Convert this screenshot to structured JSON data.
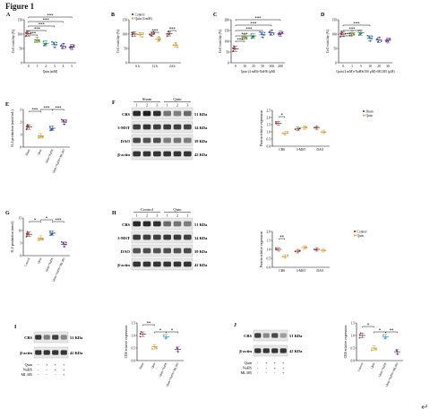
{
  "figure": {
    "title": "Figure 1",
    "return_symbol": "↵"
  },
  "colors": {
    "control": "#7c3a3a",
    "quin": "#c7a24a",
    "sham": "#7c3a3a",
    "c2": "#6e8c3a",
    "c3": "#3a8c6a",
    "c4": "#3a6e8c",
    "c5": "#4a4a8c",
    "c6": "#6a3a7c",
    "blue": "#3a5a8c",
    "cyan": "#5aa0b8"
  },
  "chart_data": [
    {
      "id": "A",
      "type": "scatter",
      "panel_label": "A",
      "ylabel": "Cell viability (%)",
      "xlabel": "Quin (mM)",
      "categories": [
        "0",
        "1",
        "2",
        "3",
        "4",
        "5"
      ],
      "ylim": [
        0,
        150
      ],
      "yticks": [
        "0",
        "50",
        "100",
        "150"
      ],
      "values": [
        102,
        80,
        68,
        63,
        58,
        55
      ],
      "sig": [
        "***",
        "***",
        "***",
        "***",
        "***"
      ]
    },
    {
      "id": "B",
      "type": "scatter",
      "panel_label": "B",
      "ylabel": "Cell viability (%)",
      "categories": [
        "6 h",
        "12 h",
        "24 h"
      ],
      "ylim": [
        0,
        150
      ],
      "yticks": [
        "0",
        "50",
        "100",
        "150"
      ],
      "legend": [
        "Control",
        "Quin (4 mM)"
      ],
      "series": [
        {
          "name": "Control",
          "values": [
            100,
            100,
            101
          ]
        },
        {
          "name": "Quin (4 mM)",
          "values": [
            98,
            82,
            62
          ]
        }
      ],
      "sig": [
        "***",
        "***"
      ]
    },
    {
      "id": "C",
      "type": "scatter",
      "panel_label": "C",
      "ylabel": "Cell viability (%)",
      "xlabel": "Quin (4 mM)+NaHS (µM)",
      "categories": [
        "0",
        "10",
        "25",
        "50",
        "100",
        "200"
      ],
      "ylim": [
        0,
        200
      ],
      "yticks": [
        "0",
        "50",
        "100",
        "150",
        "200"
      ],
      "values": [
        65,
        120,
        125,
        130,
        140,
        135
      ],
      "sig": [
        "***",
        "***",
        "***",
        "***",
        "***"
      ]
    },
    {
      "id": "D",
      "type": "scatter",
      "panel_label": "D",
      "ylabel": "Cell viability (%)",
      "xlabel": "Quin (4 mM)+NaHS(100 µM)+ML385 (µM)",
      "categories": [
        "0",
        "1",
        "5",
        "10",
        "20",
        "30"
      ],
      "ylim": [
        0,
        150
      ],
      "yticks": [
        "0",
        "50",
        "100",
        "150"
      ],
      "values": [
        100,
        104,
        105,
        85,
        80,
        78
      ],
      "sig": [
        "***",
        "***",
        "***"
      ]
    },
    {
      "id": "E",
      "type": "scatter",
      "panel_label": "E",
      "ylabel": "H₂S production (nmol/mL)",
      "categories": [
        "Sham",
        "Quin",
        "Quin+NaHS",
        "Quin+NaHS+ML385"
      ],
      "ylim": [
        0,
        3
      ],
      "yticks": [
        "0",
        "1",
        "2",
        "3"
      ],
      "values": [
        1.6,
        0.9,
        1.5,
        2.0
      ],
      "sig": [
        "***",
        "***",
        "***"
      ]
    },
    {
      "id": "F",
      "type": "western_blot",
      "panel_label": "F",
      "groups": [
        "Sham",
        "Quin"
      ],
      "lanes": [
        "1",
        "2",
        "3",
        "1",
        "2",
        "3"
      ],
      "bands": [
        {
          "name": "CBS",
          "kda": "51 KDa"
        },
        {
          "name": "3-MST",
          "kda": "34 KDa"
        },
        {
          "name": "DAO",
          "kda": "39 KDa"
        },
        {
          "name": "β-actin",
          "kda": "42 KDa"
        }
      ]
    },
    {
      "id": "F2",
      "type": "scatter",
      "ylabel": "Protein relative expression",
      "categories": [
        "CBS",
        "3-MST",
        "DAO"
      ],
      "ylim": [
        0,
        2.5
      ],
      "yticks": [
        "0.0",
        "0.5",
        "1.0",
        "1.5",
        "2.0",
        "2.5"
      ],
      "legend": [
        "Sham",
        "Quin"
      ],
      "series": [
        {
          "name": "Sham",
          "values": [
            1.6,
            1.2,
            1.3
          ]
        },
        {
          "name": "Quin",
          "values": [
            0.9,
            1.3,
            1.0
          ]
        }
      ],
      "sig": [
        "*"
      ]
    },
    {
      "id": "G",
      "type": "scatter",
      "panel_label": "G",
      "ylabel": "H₂S production (nmol)",
      "categories": [
        "Control",
        "Quin",
        "Quin+NaHS",
        "Quin+NaHS+ML385"
      ],
      "ylim": [
        0,
        15
      ],
      "yticks": [
        "0",
        "5",
        "10",
        "15"
      ],
      "values": [
        8.5,
        7.0,
        9.0,
        4.5
      ],
      "sig": [
        "*",
        "*",
        "***"
      ]
    },
    {
      "id": "H",
      "type": "western_blot",
      "panel_label": "H",
      "groups": [
        "Control",
        "Quin"
      ],
      "lanes": [
        "1",
        "2",
        "3",
        "1",
        "2",
        "3"
      ],
      "bands": [
        {
          "name": "CBS",
          "kda": "51 KDa"
        },
        {
          "name": "3-MST",
          "kda": "34 KDa"
        },
        {
          "name": "DAO",
          "kda": "39 KDa"
        },
        {
          "name": "β-actin",
          "kda": "42 KDa"
        }
      ]
    },
    {
      "id": "H2",
      "type": "scatter",
      "ylabel": "Protein relative expression",
      "categories": [
        "CBS",
        "3-MST",
        "DAO"
      ],
      "ylim": [
        0,
        2.0
      ],
      "yticks": [
        "0.0",
        "0.5",
        "1.0",
        "1.5",
        "2.0"
      ],
      "legend": [
        "Control",
        "Quin"
      ],
      "series": [
        {
          "name": "Control",
          "values": [
            1.0,
            0.9,
            1.0
          ]
        },
        {
          "name": "Quin",
          "values": [
            0.6,
            1.1,
            0.95
          ]
        }
      ],
      "sig": [
        "**"
      ]
    },
    {
      "id": "I",
      "type": "western_blot",
      "panel_label": "I",
      "bands": [
        {
          "name": "CBS",
          "kda": "51 KDa"
        },
        {
          "name": "β-actin",
          "kda": "42 KDa"
        }
      ],
      "treat_rows": [
        {
          "name": "Quin",
          "marks": [
            "-",
            "+",
            "+",
            "+"
          ]
        },
        {
          "name": "NaHS",
          "marks": [
            "-",
            "-",
            "+",
            "+"
          ]
        },
        {
          "name": "ML385",
          "marks": [
            "-",
            "-",
            "-",
            "+"
          ]
        }
      ]
    },
    {
      "id": "I2",
      "type": "scatter",
      "ylabel": "CBS relative expression",
      "categories": [
        "Sham",
        "Quin",
        "Quin+NaHS",
        "Quin+NaHS+ML385"
      ],
      "ylim": [
        0,
        1.5
      ],
      "yticks": [
        "0.0",
        "0.5",
        "1.0",
        "1.5"
      ],
      "values": [
        1.05,
        0.55,
        0.95,
        0.45
      ],
      "sig": [
        "**",
        "*",
        "*"
      ]
    },
    {
      "id": "J",
      "type": "western_blot",
      "panel_label": "J",
      "bands": [
        {
          "name": "CBS",
          "kda": "51 KDa"
        },
        {
          "name": "β-actin",
          "kda": "42 KDa"
        }
      ],
      "treat_rows": [
        {
          "name": "Quin",
          "marks": [
            "-",
            "+",
            "+",
            "+"
          ]
        },
        {
          "name": "NaHS",
          "marks": [
            "-",
            "-",
            "+",
            "+"
          ]
        },
        {
          "name": "ML385",
          "marks": [
            "-",
            "-",
            "-",
            "+"
          ]
        }
      ]
    },
    {
      "id": "J2",
      "type": "scatter",
      "ylabel": "CBS relative expression",
      "categories": [
        "Control",
        "Quin",
        "Quin+NaHS",
        "Quin+NaHS+ML385"
      ],
      "ylim": [
        0,
        1.5
      ],
      "yticks": [
        "0.0",
        "0.5",
        "1.0",
        "1.5"
      ],
      "values": [
        1.0,
        0.5,
        0.95,
        0.35
      ],
      "sig": [
        "*",
        "*",
        "**"
      ]
    }
  ]
}
